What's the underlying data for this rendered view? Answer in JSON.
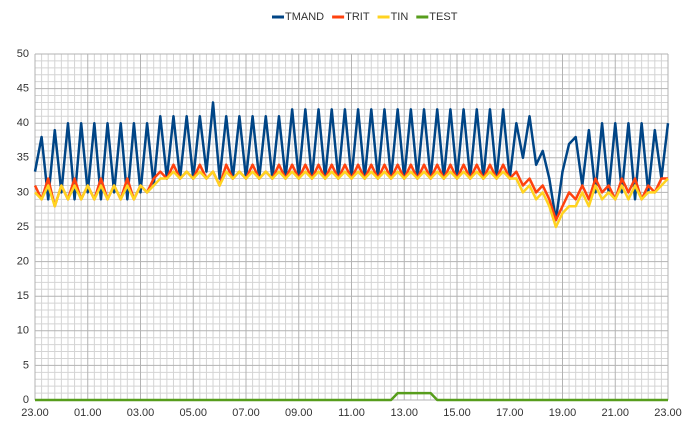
{
  "chart_data": {
    "type": "line",
    "x": [
      0,
      0.25,
      0.5,
      0.75,
      1,
      1.25,
      1.5,
      1.75,
      2,
      2.25,
      2.5,
      2.75,
      3,
      3.25,
      3.5,
      3.75,
      4,
      4.25,
      4.5,
      4.75,
      5,
      5.25,
      5.5,
      5.75,
      6,
      6.25,
      6.5,
      6.75,
      7,
      7.25,
      7.5,
      7.75,
      8,
      8.25,
      8.5,
      8.75,
      9,
      9.25,
      9.5,
      9.75,
      10,
      10.25,
      10.5,
      10.75,
      11,
      11.25,
      11.5,
      11.75,
      12,
      12.25,
      12.5,
      12.75,
      13,
      13.25,
      13.5,
      13.75,
      14,
      14.25,
      14.5,
      14.75,
      15,
      15.25,
      15.5,
      15.75,
      16,
      16.25,
      16.5,
      16.75,
      17,
      17.25,
      17.5,
      17.75,
      18,
      18.25,
      18.5,
      18.75,
      19,
      19.25,
      19.5,
      19.75,
      20,
      20.25,
      20.5,
      20.75,
      21,
      21.25,
      21.5,
      21.75,
      22,
      22.25,
      22.5,
      22.75,
      23,
      23.25,
      23.5,
      23.75,
      24
    ],
    "series": [
      {
        "name": "TMAND",
        "color": "#004586",
        "values": [
          33,
          38,
          29,
          39,
          30,
          40,
          29,
          40,
          30,
          40,
          29,
          40,
          30,
          40,
          29,
          40,
          30,
          40,
          31,
          41,
          32,
          41,
          32,
          41,
          32,
          41,
          33,
          43,
          32,
          41,
          32,
          41,
          32,
          41,
          32,
          41,
          32,
          41,
          32,
          42,
          32,
          42,
          32,
          42,
          32,
          42,
          32,
          42,
          32,
          42,
          32,
          42,
          32,
          42,
          32,
          42,
          32,
          42,
          32,
          42,
          32,
          42,
          32,
          42,
          32,
          42,
          32,
          42,
          32,
          42,
          32,
          42,
          32,
          40,
          35,
          41,
          34,
          36,
          32,
          26,
          33,
          37,
          38,
          31,
          39,
          30,
          40,
          30,
          40,
          30,
          40,
          29,
          40,
          30,
          39,
          32,
          40
        ]
      },
      {
        "name": "TRIT",
        "color": "#ff420e",
        "values": [
          31,
          29,
          32,
          28,
          31,
          29,
          32,
          29,
          31,
          29,
          32,
          29,
          31,
          29,
          32,
          29,
          31,
          30,
          32,
          33,
          32,
          34,
          32,
          33,
          32,
          34,
          32,
          33,
          31,
          34,
          32,
          33,
          32,
          34,
          32,
          33,
          32,
          34,
          32,
          34,
          32,
          34,
          32,
          34,
          32,
          34,
          32,
          34,
          32,
          34,
          32,
          34,
          32,
          34,
          32,
          34,
          32,
          34,
          32,
          34,
          32,
          34,
          32,
          34,
          32,
          34,
          32,
          34,
          32,
          34,
          32,
          34,
          32,
          33,
          31,
          32,
          30,
          31,
          29,
          26,
          28,
          30,
          29,
          31,
          29,
          32,
          30,
          31,
          29,
          32,
          30,
          32,
          29,
          31,
          30,
          32,
          32
        ]
      },
      {
        "name": "TIN",
        "color": "#ffd320",
        "values": [
          30,
          29,
          31,
          28,
          31,
          29,
          31,
          29,
          31,
          29,
          31,
          29,
          31,
          29,
          31,
          29,
          31,
          30,
          31,
          32,
          32,
          33,
          32,
          33,
          32,
          33,
          32,
          33,
          31,
          33,
          32,
          33,
          32,
          33,
          32,
          33,
          32,
          33,
          32,
          33,
          32,
          33,
          32,
          33,
          32,
          33,
          32,
          33,
          32,
          33,
          32,
          33,
          32,
          33,
          32,
          33,
          32,
          33,
          32,
          33,
          32,
          33,
          32,
          33,
          32,
          33,
          32,
          33,
          32,
          33,
          32,
          33,
          32,
          32,
          30,
          31,
          29,
          30,
          28,
          25,
          27,
          28,
          28,
          30,
          28,
          31,
          29,
          30,
          29,
          31,
          29,
          31,
          29,
          30,
          30,
          31,
          32
        ]
      },
      {
        "name": "TEST",
        "color": "#579d1c",
        "values": [
          0,
          0,
          0,
          0,
          0,
          0,
          0,
          0,
          0,
          0,
          0,
          0,
          0,
          0,
          0,
          0,
          0,
          0,
          0,
          0,
          0,
          0,
          0,
          0,
          0,
          0,
          0,
          0,
          0,
          0,
          0,
          0,
          0,
          0,
          0,
          0,
          0,
          0,
          0,
          0,
          0,
          0,
          0,
          0,
          0,
          0,
          0,
          0,
          0,
          0,
          0,
          0,
          0,
          0,
          0,
          1,
          1,
          1,
          1,
          1,
          1,
          0,
          0,
          0,
          0,
          0,
          0,
          0,
          0,
          0,
          0,
          0,
          0,
          0,
          0,
          0,
          0,
          0,
          0,
          0,
          0,
          0,
          0,
          0,
          0,
          0,
          0,
          0,
          0,
          0,
          0,
          0,
          0,
          0,
          0,
          0,
          0
        ]
      }
    ],
    "xlim": [
      0,
      24
    ],
    "xticks": [
      {
        "value": 0,
        "label": "23.00"
      },
      {
        "value": 2,
        "label": "01.00"
      },
      {
        "value": 4,
        "label": "03.00"
      },
      {
        "value": 6,
        "label": "05.00"
      },
      {
        "value": 8,
        "label": "07.00"
      },
      {
        "value": 10,
        "label": "09.00"
      },
      {
        "value": 12,
        "label": "11.00"
      },
      {
        "value": 14,
        "label": "13.00"
      },
      {
        "value": 16,
        "label": "15.00"
      },
      {
        "value": 18,
        "label": "17.00"
      },
      {
        "value": 20,
        "label": "19.00"
      },
      {
        "value": 22,
        "label": "21.00"
      },
      {
        "value": 24,
        "label": "23.00"
      }
    ],
    "ylim": [
      0,
      50
    ],
    "yticks": [
      0,
      5,
      10,
      15,
      20,
      25,
      30,
      35,
      40,
      45,
      50
    ],
    "grid": true,
    "legend": "top"
  }
}
